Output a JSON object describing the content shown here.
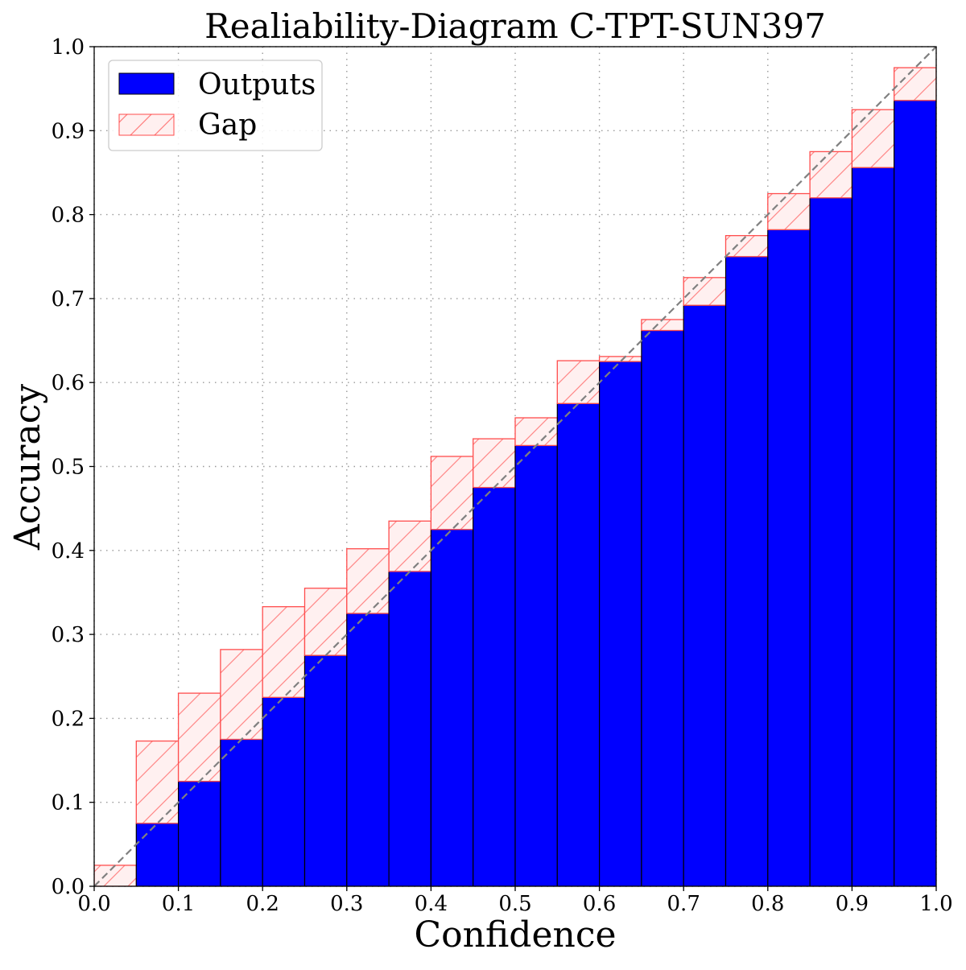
{
  "chart_data": {
    "type": "bar",
    "title": "Realiability-Diagram C-TPT-SUN397",
    "xlabel": "Confidence",
    "ylabel": "Accuracy",
    "xlim": [
      0.0,
      1.0
    ],
    "ylim": [
      0.0,
      1.0
    ],
    "grid": true,
    "legend_position": "top-left",
    "x_ticks": [
      "0.0",
      "0.1",
      "0.2",
      "0.3",
      "0.4",
      "0.5",
      "0.6",
      "0.7",
      "0.8",
      "0.9",
      "1.0"
    ],
    "y_ticks": [
      "0.0",
      "0.1",
      "0.2",
      "0.3",
      "0.4",
      "0.5",
      "0.6",
      "0.7",
      "0.8",
      "0.9",
      "1.0"
    ],
    "bin_width": 0.05,
    "bin_starts": [
      0.0,
      0.05,
      0.1,
      0.15,
      0.2,
      0.25,
      0.3,
      0.35,
      0.4,
      0.45,
      0.5,
      0.55,
      0.6,
      0.65,
      0.7,
      0.75,
      0.8,
      0.85,
      0.9,
      0.95
    ],
    "series": [
      {
        "name": "Outputs",
        "color": "#0000ff",
        "values": [
          0.0,
          0.075,
          0.125,
          0.175,
          0.225,
          0.275,
          0.325,
          0.375,
          0.425,
          0.475,
          0.525,
          0.575,
          0.625,
          0.662,
          0.692,
          0.75,
          0.782,
          0.82,
          0.856,
          0.936
        ]
      },
      {
        "name": "Gap",
        "color": "#ff0000",
        "values": [
          0.025,
          0.173,
          0.23,
          0.282,
          0.333,
          0.355,
          0.402,
          0.435,
          0.512,
          0.533,
          0.558,
          0.626,
          0.631,
          0.675,
          0.725,
          0.775,
          0.825,
          0.875,
          0.925,
          0.975
        ]
      }
    ],
    "reference_line": "diagonal"
  }
}
